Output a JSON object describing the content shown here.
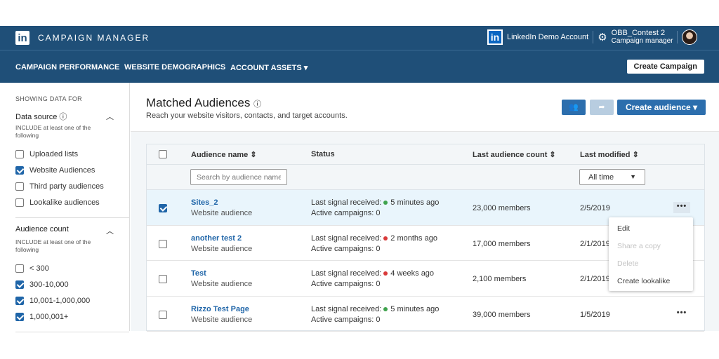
{
  "header": {
    "brand": "CAMPAIGN MANAGER",
    "account": "LinkedIn Demo Account",
    "user_name": "OBB_Contest 2",
    "user_role": "Campaign manager"
  },
  "nav": {
    "items": [
      "CAMPAIGN PERFORMANCE",
      "WEBSITE DEMOGRAPHICS",
      "ACCOUNT ASSETS ▾"
    ],
    "create_campaign": "Create Campaign"
  },
  "sidebar": {
    "heading": "SHOWING DATA FOR",
    "data_source": {
      "label": "Data source",
      "hint": "INCLUDE at least one of the following",
      "options": [
        {
          "label": "Uploaded lists",
          "checked": false
        },
        {
          "label": "Website Audiences",
          "checked": true
        },
        {
          "label": "Third party audiences",
          "checked": false
        },
        {
          "label": "Lookalike audiences",
          "checked": false
        }
      ]
    },
    "audience_count": {
      "label": "Audience count",
      "hint": "INCLUDE at least one of the following",
      "options": [
        {
          "label": "< 300",
          "checked": false
        },
        {
          "label": "300-10,000",
          "checked": true
        },
        {
          "label": "10,001-1,000,000",
          "checked": true
        },
        {
          "label": "1,000,001+",
          "checked": true
        }
      ]
    }
  },
  "main": {
    "title": "Matched Audiences",
    "subtitle": "Reach your website visitors, contacts, and target accounts.",
    "create_audience": "Create audience ▾",
    "columns": [
      "Audience name",
      "Status",
      "Last audience count",
      "Last modified"
    ],
    "search_placeholder": "Search by audience name",
    "date_filter": "All time",
    "rows": [
      {
        "name": "Sites_2",
        "type": "Website audience",
        "signal_label": "Last signal received:",
        "signal": "5 minutes ago",
        "signal_color": "#3fa34d",
        "campaigns": "Active campaigns: 0",
        "count": "23,000 members",
        "modified": "2/5/2019",
        "checked": true
      },
      {
        "name": "another test 2",
        "type": "Website audience",
        "signal_label": "Last signal received:",
        "signal": "2 months ago",
        "signal_color": "#d93a3a",
        "campaigns": "Active campaigns: 0",
        "count": "17,000 members",
        "modified": "2/1/2019",
        "checked": false
      },
      {
        "name": "Test",
        "type": "Website audience",
        "signal_label": "Last signal received:",
        "signal": "4 weeks ago",
        "signal_color": "#d93a3a",
        "campaigns": "Active campaigns: 0",
        "count": "2,100 members",
        "modified": "2/1/2019",
        "checked": false
      },
      {
        "name": "Rizzo Test Page",
        "type": "Website audience",
        "signal_label": "Last signal received:",
        "signal": "5 minutes ago",
        "signal_color": "#3fa34d",
        "campaigns": "Active campaigns: 0",
        "count": "39,000 members",
        "modified": "1/5/2019",
        "checked": false
      }
    ],
    "menu": [
      "Edit",
      "Share a copy",
      "Delete",
      "Create lookalike"
    ]
  }
}
